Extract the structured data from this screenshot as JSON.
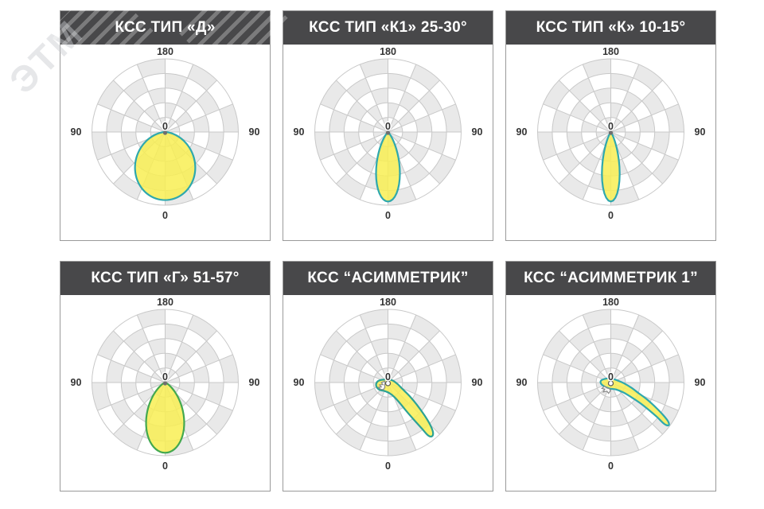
{
  "watermark": {
    "text": "ЭТМ"
  },
  "axis_labels": {
    "top": "180",
    "left": "90",
    "right": "90",
    "bottom": "0",
    "center": "0"
  },
  "style": {
    "header_bg": "#48484a",
    "header_text": "#ffffff",
    "grid_line": "#c8c8c8",
    "cell_gray": "#e9e9e9",
    "panel_border": "#9a9a9a",
    "lobe_fill": "#f8ee54",
    "label_color": "#333333",
    "notch_stroke": "#8a8a8a",
    "center_dot": "#6f6f6f"
  },
  "chart_data": [
    {
      "type": "polar",
      "title": "КСС ТИП «Д»",
      "rings": 5,
      "sectors": 16,
      "angle_step_deg": 22.5,
      "angle_ticks": [
        "180",
        "90",
        "90",
        "0"
      ],
      "center_tick": "0",
      "center_marker": "dot",
      "lobe": {
        "kind": "cospow",
        "exponent": 1.4,
        "r_max": 0.93,
        "peak_angle_deg": 0,
        "stroke": "#2fa8ad"
      }
    },
    {
      "type": "polar",
      "title": "КСС ТИП «К1» 25-30°",
      "rings": 5,
      "sectors": 16,
      "angle_step_deg": 22.5,
      "angle_ticks": [
        "180",
        "90",
        "90",
        "0"
      ],
      "center_tick": "0",
      "center_marker": "dot",
      "lobe": {
        "kind": "cospow",
        "exponent": 12,
        "r_max": 0.95,
        "peak_angle_deg": 0,
        "stroke": "#2fa8ad"
      }
    },
    {
      "type": "polar",
      "title": "КСС ТИП «К» 10-15°",
      "rings": 5,
      "sectors": 16,
      "angle_step_deg": 22.5,
      "angle_ticks": [
        "180",
        "90",
        "90",
        "0"
      ],
      "center_tick": "0",
      "center_marker": "dot",
      "lobe": {
        "kind": "cospow",
        "exponent": 22,
        "r_max": 0.95,
        "peak_angle_deg": 0,
        "stroke": "#2fa8ad"
      }
    },
    {
      "type": "polar",
      "title": "КСС ТИП «Г» 51-57°",
      "rings": 5,
      "sectors": 16,
      "angle_step_deg": 22.5,
      "angle_ticks": [
        "180",
        "90",
        "90",
        "0"
      ],
      "center_tick": "0",
      "center_marker": "dot",
      "lobe": {
        "kind": "cospow",
        "exponent": 4.5,
        "r_max": 0.96,
        "peak_angle_deg": 0,
        "stroke": "#43a84f"
      }
    },
    {
      "type": "polar",
      "title": "КСС “АСИММЕТРИК”",
      "rings": 5,
      "sectors": 16,
      "angle_step_deg": 22.5,
      "angle_ticks": [
        "180",
        "90",
        "90",
        "0"
      ],
      "center_tick": "0",
      "center_marker": "ring",
      "lobe": {
        "kind": "poly",
        "peak_angle_deg": 41,
        "r_max": 0.95,
        "stroke": "#2da295",
        "points": [
          [
            -0.01,
            -0.04
          ],
          [
            0.06,
            -0.03
          ],
          [
            0.13,
            0.02
          ],
          [
            0.2,
            0.09
          ],
          [
            0.3,
            0.19
          ],
          [
            0.4,
            0.31
          ],
          [
            0.5,
            0.45
          ],
          [
            0.575,
            0.575
          ],
          [
            0.615,
            0.68
          ],
          [
            0.6,
            0.735
          ],
          [
            0.545,
            0.72
          ],
          [
            0.46,
            0.625
          ],
          [
            0.36,
            0.515
          ],
          [
            0.26,
            0.4
          ],
          [
            0.17,
            0.29
          ],
          [
            0.09,
            0.2
          ],
          [
            0.02,
            0.145
          ],
          [
            -0.05,
            0.115
          ],
          [
            -0.115,
            0.1
          ],
          [
            -0.155,
            0.06
          ],
          [
            -0.16,
            0.015
          ],
          [
            -0.135,
            -0.02
          ],
          [
            -0.08,
            -0.038
          ]
        ],
        "white_notch": [
          [
            -0.045,
            -0.015
          ],
          [
            -0.09,
            0.0
          ],
          [
            -0.07,
            0.028
          ],
          [
            -0.115,
            0.032
          ],
          [
            -0.09,
            0.06
          ],
          [
            -0.128,
            0.066
          ],
          [
            -0.1,
            0.092
          ],
          [
            -0.063,
            0.096
          ],
          [
            -0.042,
            0.065
          ],
          [
            -0.048,
            0.03
          ],
          [
            -0.038,
            0.005
          ]
        ]
      }
    },
    {
      "type": "polar",
      "title": "КСС “АСИММЕТРИК 1”",
      "rings": 5,
      "sectors": 16,
      "angle_step_deg": 22.5,
      "angle_ticks": [
        "180",
        "90",
        "90",
        "0"
      ],
      "center_tick": "0",
      "center_marker": "ring",
      "lobe": {
        "kind": "poly",
        "peak_angle_deg": 55,
        "r_max": 0.97,
        "stroke": "#2fa8ad",
        "points": [
          [
            -0.13,
            -0.03
          ],
          [
            -0.05,
            -0.055
          ],
          [
            0.03,
            -0.05
          ],
          [
            0.1,
            -0.025
          ],
          [
            0.18,
            0.01
          ],
          [
            0.28,
            0.07
          ],
          [
            0.38,
            0.145
          ],
          [
            0.5,
            0.235
          ],
          [
            0.62,
            0.345
          ],
          [
            0.72,
            0.45
          ],
          [
            0.785,
            0.535
          ],
          [
            0.79,
            0.585
          ],
          [
            0.73,
            0.565
          ],
          [
            0.63,
            0.47
          ],
          [
            0.52,
            0.375
          ],
          [
            0.4,
            0.28
          ],
          [
            0.28,
            0.2
          ],
          [
            0.17,
            0.135
          ],
          [
            0.07,
            0.095
          ],
          [
            -0.02,
            0.082
          ],
          [
            -0.09,
            0.052
          ],
          [
            -0.135,
            0.012
          ]
        ],
        "white_notch": [
          [
            -0.088,
            0.052
          ],
          [
            -0.122,
            0.08
          ],
          [
            -0.082,
            0.09
          ],
          [
            -0.103,
            0.128
          ],
          [
            -0.052,
            0.118
          ],
          [
            -0.03,
            0.148
          ],
          [
            -0.002,
            0.108
          ],
          [
            -0.022,
            0.082
          ],
          [
            -0.052,
            0.075
          ]
        ]
      }
    }
  ]
}
